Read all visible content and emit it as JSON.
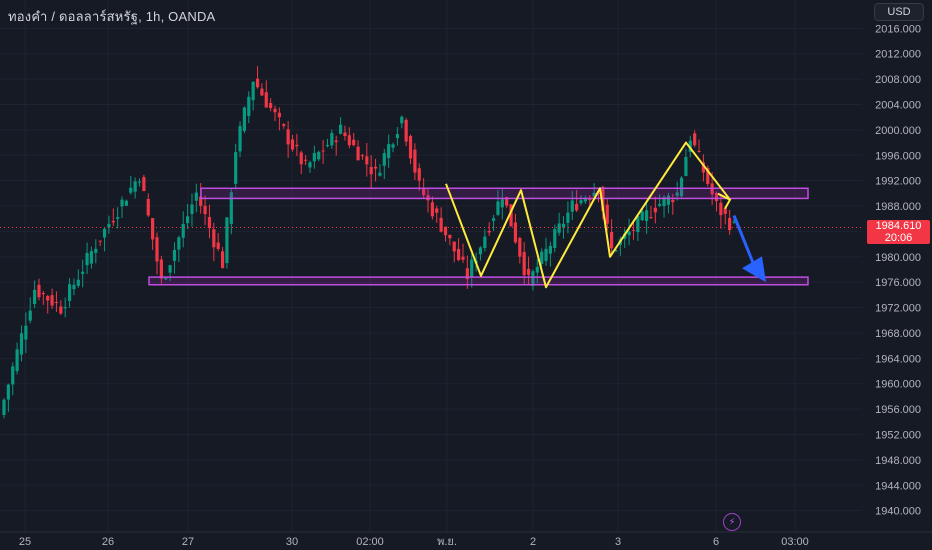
{
  "symbol_title": "ทองคำ / ดอลลาร์สหรัฐ, 1h, OANDA",
  "currency_button": "USD",
  "last_price": "1984.610",
  "countdown": "20:06",
  "events_icon": "lightning-icon",
  "colors": {
    "background": "#161a25",
    "grid": "#1f2330",
    "up_candle": "#089981",
    "down_candle": "#f23645",
    "zone": "#9c27b0",
    "pattern_line": "#ffeb3b",
    "arrow": "#2962ff",
    "price_tag": "#f23645"
  },
  "chart_data": {
    "type": "candlestick",
    "y_axis_ticks": [
      "2016.000",
      "2012.000",
      "2008.000",
      "2004.000",
      "2000.000",
      "1996.000",
      "1992.000",
      "1988.000",
      "1984.000",
      "1980.000",
      "1976.000",
      "1972.000",
      "1968.000",
      "1964.000",
      "1960.000",
      "1956.000",
      "1952.000",
      "1948.000",
      "1944.000",
      "1940.000"
    ],
    "ylim": [
      1939,
      2017
    ],
    "x_axis_ticks": [
      "25",
      "26",
      "27",
      "30",
      "02:00",
      "พ.ย.",
      "2",
      "3",
      "6",
      "03:00"
    ],
    "grid": true,
    "last_price": 1984.61,
    "zones": [
      {
        "top": 1990.8,
        "bottom": 1989.2
      },
      {
        "top": 1976.8,
        "bottom": 1975.6
      }
    ],
    "pattern_path": [
      1991.5,
      1977.0,
      1990.5,
      1975.2,
      1990.8,
      1980.0,
      1998.0,
      1989.0
    ],
    "projection_arrow": {
      "from": 1986.5,
      "to": 1976.0
    },
    "segments": [
      {
        "bars": 8,
        "start": 1955.0,
        "end": 1975.0
      },
      {
        "bars": 6,
        "start": 1975.0,
        "end": 1972.0
      },
      {
        "bars": 8,
        "start": 1972.0,
        "end": 1982.0
      },
      {
        "bars": 10,
        "start": 1982.0,
        "end": 1993.0
      },
      {
        "bars": 5,
        "start": 1993.0,
        "end": 1976.0
      },
      {
        "bars": 8,
        "start": 1976.0,
        "end": 1990.0
      },
      {
        "bars": 6,
        "start": 1990.0,
        "end": 1979.0
      },
      {
        "bars": 3,
        "start": 1979.0,
        "end": 1997.0
      },
      {
        "bars": 4,
        "start": 1997.0,
        "end": 2008.0
      },
      {
        "bars": 6,
        "start": 2008.0,
        "end": 2001.0
      },
      {
        "bars": 6,
        "start": 2001.0,
        "end": 1994.0
      },
      {
        "bars": 8,
        "start": 1994.0,
        "end": 2000.0
      },
      {
        "bars": 8,
        "start": 2000.0,
        "end": 1993.0
      },
      {
        "bars": 6,
        "start": 1993.0,
        "end": 2002.0
      },
      {
        "bars": 4,
        "start": 2002.0,
        "end": 1991.0
      },
      {
        "bars": 5,
        "start": 1991.0,
        "end": 1985.0
      },
      {
        "bars": 6,
        "start": 1985.0,
        "end": 1977.0
      },
      {
        "bars": 8,
        "start": 1977.0,
        "end": 1990.0
      },
      {
        "bars": 6,
        "start": 1990.0,
        "end": 1976.0
      },
      {
        "bars": 10,
        "start": 1976.0,
        "end": 1988.0
      },
      {
        "bars": 6,
        "start": 1988.0,
        "end": 1991.0
      },
      {
        "bars": 3,
        "start": 1991.0,
        "end": 1981.0
      },
      {
        "bars": 10,
        "start": 1981.0,
        "end": 1988.0
      },
      {
        "bars": 5,
        "start": 1988.0,
        "end": 1990.0
      },
      {
        "bars": 3,
        "start": 1990.0,
        "end": 1999.0
      },
      {
        "bars": 6,
        "start": 1999.0,
        "end": 1988.0
      },
      {
        "bars": 4,
        "start": 1988.0,
        "end": 1984.6
      }
    ]
  }
}
